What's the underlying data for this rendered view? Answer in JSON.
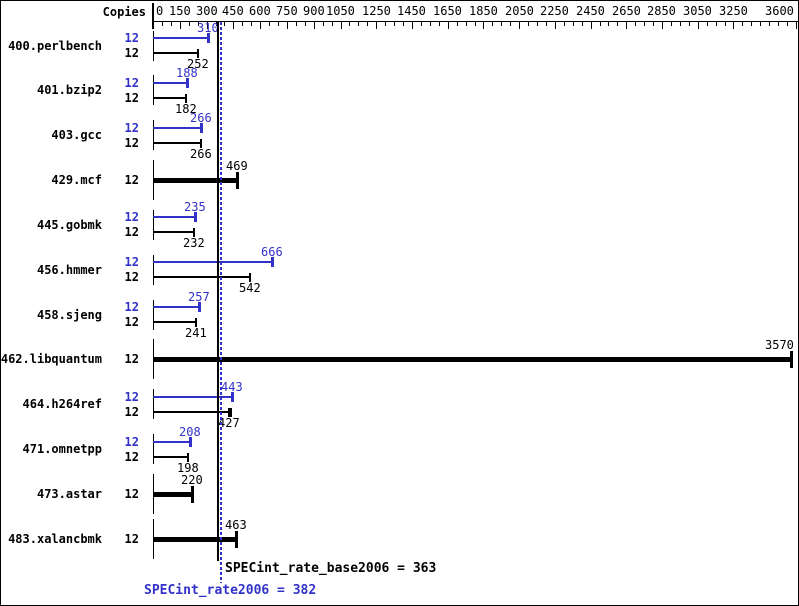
{
  "header": {
    "copies_label": "Copies"
  },
  "summary": {
    "base_metric_label": "SPECint_rate_base2006 = 363",
    "peak_metric_label": "SPECint_rate2006 = 382"
  },
  "colors": {
    "peak_blue": "#3232c8",
    "base_black": "#000000",
    "background": "#ffffff"
  },
  "chart_data": {
    "type": "bar",
    "orientation": "horizontal",
    "copies_column_header": "Copies",
    "axis": {
      "position": "top",
      "min": 0,
      "max": 3600,
      "minor_tick_step": 50,
      "major_ticks": [
        0,
        150,
        300,
        450,
        600,
        750,
        900,
        1050,
        1250,
        1450,
        1650,
        1850,
        2050,
        2250,
        2450,
        2650,
        2850,
        3050,
        3250,
        3600
      ],
      "grid": false
    },
    "benchmarks": [
      {
        "name": "400.perlbench",
        "copies_peak": 12,
        "copies_base": 12,
        "peak": 310,
        "base": 252,
        "single_bar": false
      },
      {
        "name": "401.bzip2",
        "copies_peak": 12,
        "copies_base": 12,
        "peak": 188,
        "base": 182,
        "single_bar": false
      },
      {
        "name": "403.gcc",
        "copies_peak": 12,
        "copies_base": 12,
        "peak": 266,
        "base": 266,
        "single_bar": false
      },
      {
        "name": "429.mcf",
        "copies": 12,
        "value": 469,
        "single_bar": true
      },
      {
        "name": "445.gobmk",
        "copies_peak": 12,
        "copies_base": 12,
        "peak": 235,
        "base": 232,
        "single_bar": false
      },
      {
        "name": "456.hmmer",
        "copies_peak": 12,
        "copies_base": 12,
        "peak": 666,
        "base": 542,
        "single_bar": false
      },
      {
        "name": "458.sjeng",
        "copies_peak": 12,
        "copies_base": 12,
        "peak": 257,
        "base": 241,
        "single_bar": false
      },
      {
        "name": "462.libquantum",
        "copies": 12,
        "value": 3570,
        "single_bar": true
      },
      {
        "name": "464.h264ref",
        "copies_peak": 12,
        "copies_base": 12,
        "peak": 443,
        "base": 427,
        "base_extra_tick": 438,
        "single_bar": false
      },
      {
        "name": "471.omnetpp",
        "copies_peak": 12,
        "copies_base": 12,
        "peak": 208,
        "base": 198,
        "single_bar": false
      },
      {
        "name": "473.astar",
        "copies": 12,
        "value": 220,
        "single_bar": true
      },
      {
        "name": "483.xalancbmk",
        "copies": 12,
        "value": 463,
        "single_bar": true
      }
    ],
    "reference_lines": [
      {
        "metric": "SPECint_rate_base2006",
        "value": 363,
        "style": "solid",
        "color": "#000000"
      },
      {
        "metric": "SPECint_rate2006",
        "value": 382,
        "style": "dotted",
        "color": "#3232c8"
      }
    ]
  }
}
